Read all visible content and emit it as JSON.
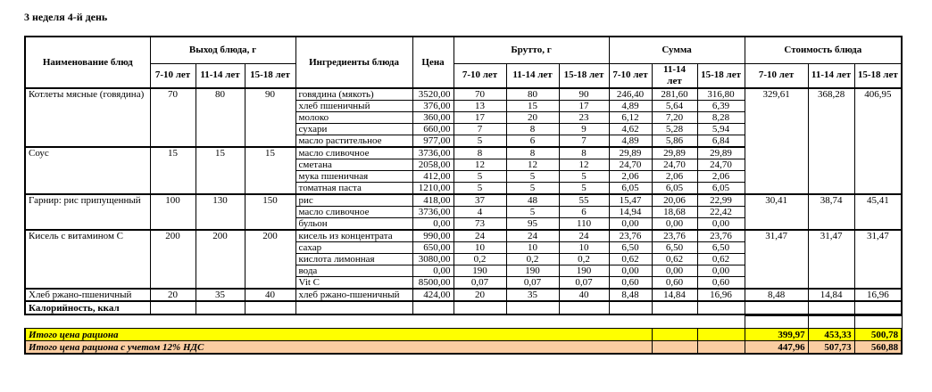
{
  "page": {
    "title": "3 неделя 4-й день"
  },
  "table": {
    "header": {
      "name_col": "Наименование блюд",
      "out_group": "Выход блюда, г",
      "ingredients_col": "Ингредиенты блюда",
      "price_col": "Цена",
      "brutto_group": "Брутто, г",
      "sum_group": "Сумма",
      "cost_group": "Стоимость блюда",
      "ages": [
        "7-10 лет",
        "11-14 лет",
        "15-18 лет"
      ]
    },
    "dishes": [
      {
        "name": "Котлеты мясные (говядина)",
        "out": [
          "70",
          "80",
          "90"
        ],
        "cost": [
          "329,61",
          "368,28",
          "406,95"
        ],
        "ingredients": [
          {
            "name": "говядина (мякоть)",
            "price": "3520,00",
            "brutto": [
              "70",
              "80",
              "90"
            ],
            "sum": [
              "246,40",
              "281,60",
              "316,80"
            ]
          },
          {
            "name": "хлеб пшеничный",
            "price": "376,00",
            "brutto": [
              "13",
              "15",
              "17"
            ],
            "sum": [
              "4,89",
              "5,64",
              "6,39"
            ]
          },
          {
            "name": "молоко",
            "price": "360,00",
            "brutto": [
              "17",
              "20",
              "23"
            ],
            "sum": [
              "6,12",
              "7,20",
              "8,28"
            ]
          },
          {
            "name": "сухари",
            "price": "660,00",
            "brutto": [
              "7",
              "8",
              "9"
            ],
            "sum": [
              "4,62",
              "5,28",
              "5,94"
            ]
          },
          {
            "name": "масло растительное",
            "price": "977,00",
            "brutto": [
              "5",
              "6",
              "7"
            ],
            "sum": [
              "4,89",
              "5,86",
              "6,84"
            ]
          }
        ]
      },
      {
        "name": "Соус",
        "out": [
          "15",
          "15",
          "15"
        ],
        "cost": null,
        "ingredients": [
          {
            "name": "масло сливочное",
            "price": "3736,00",
            "brutto": [
              "8",
              "8",
              "8"
            ],
            "sum": [
              "29,89",
              "29,89",
              "29,89"
            ]
          },
          {
            "name": "сметана",
            "price": "2058,00",
            "brutto": [
              "12",
              "12",
              "12"
            ],
            "sum": [
              "24,70",
              "24,70",
              "24,70"
            ]
          },
          {
            "name": "мука пшеничная",
            "price": "412,00",
            "brutto": [
              "5",
              "5",
              "5"
            ],
            "sum": [
              "2,06",
              "2,06",
              "2,06"
            ]
          },
          {
            "name": "томатная паста",
            "price": "1210,00",
            "brutto": [
              "5",
              "5",
              "5"
            ],
            "sum": [
              "6,05",
              "6,05",
              "6,05"
            ]
          }
        ]
      },
      {
        "name": "Гарнир: рис припущенный",
        "out": [
          "100",
          "130",
          "150"
        ],
        "cost": [
          "30,41",
          "38,74",
          "45,41"
        ],
        "ingredients": [
          {
            "name": "рис",
            "price": "418,00",
            "brutto": [
              "37",
              "48",
              "55"
            ],
            "sum": [
              "15,47",
              "20,06",
              "22,99"
            ]
          },
          {
            "name": "масло сливочное",
            "price": "3736,00",
            "brutto": [
              "4",
              "5",
              "6"
            ],
            "sum": [
              "14,94",
              "18,68",
              "22,42"
            ]
          },
          {
            "name": "бульон",
            "price": "0,00",
            "brutto": [
              "73",
              "95",
              "110"
            ],
            "sum": [
              "0,00",
              "0,00",
              "0,00"
            ]
          }
        ]
      },
      {
        "name": "Кисель с витамином С",
        "out": [
          "200",
          "200",
          "200"
        ],
        "cost": [
          "31,47",
          "31,47",
          "31,47"
        ],
        "ingredients": [
          {
            "name": "кисель из концентрата",
            "price": "990,00",
            "brutto": [
              "24",
              "24",
              "24"
            ],
            "sum": [
              "23,76",
              "23,76",
              "23,76"
            ]
          },
          {
            "name": "сахар",
            "price": "650,00",
            "brutto": [
              "10",
              "10",
              "10"
            ],
            "sum": [
              "6,50",
              "6,50",
              "6,50"
            ]
          },
          {
            "name": "кислота лимонная",
            "price": "3080,00",
            "brutto": [
              "0,2",
              "0,2",
              "0,2"
            ],
            "sum": [
              "0,62",
              "0,62",
              "0,62"
            ]
          },
          {
            "name": "вода",
            "price": "0,00",
            "brutto": [
              "190",
              "190",
              "190"
            ],
            "sum": [
              "0,00",
              "0,00",
              "0,00"
            ]
          },
          {
            "name": "Vit C",
            "price": "8500,00",
            "brutto": [
              "0,07",
              "0,07",
              "0,07"
            ],
            "sum": [
              "0,60",
              "0,60",
              "0,60"
            ]
          }
        ]
      },
      {
        "name": "Хлеб ржано-пшеничный",
        "out": [
          "20",
          "35",
          "40"
        ],
        "cost": [
          "8,48",
          "14,84",
          "16,96"
        ],
        "ingredients": [
          {
            "name": "хлеб ржано-пшеничный",
            "price": "424,00",
            "brutto": [
              "20",
              "35",
              "40"
            ],
            "sum": [
              "8,48",
              "14,84",
              "16,96"
            ]
          }
        ]
      }
    ],
    "calories_row": {
      "label": "Калорийность, ккал"
    },
    "totals": [
      {
        "label": "Итого цена рациона",
        "values": [
          "399,97",
          "453,33",
          "500,78"
        ],
        "bg": "#FFFF00"
      },
      {
        "label": "Итого цена рациона с учетом 12% НДС",
        "values": [
          "447,96",
          "507,73",
          "560,88"
        ],
        "bg": "#FACDA2"
      }
    ]
  }
}
